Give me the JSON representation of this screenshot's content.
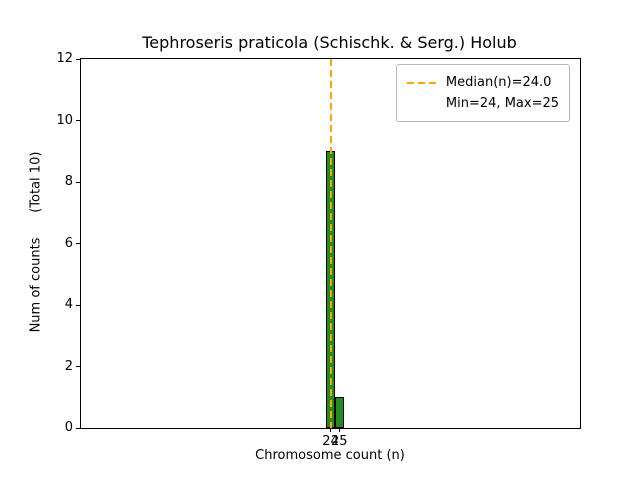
{
  "chart_data": {
    "type": "bar",
    "title": "Tephroseris praticola (Schischk. & Serg.) Holub",
    "xlabel": "Chromosome count (n)",
    "ylabel": "Num of counts      (Total 10)",
    "total_counts": 10,
    "bins": [
      {
        "x": 24,
        "count": 9
      },
      {
        "x": 25,
        "count": 1
      }
    ],
    "bin_width": 1,
    "median": 24.0,
    "min": 24,
    "max": 25,
    "xlim": [
      -4.3,
      52.3
    ],
    "ylim": [
      0,
      12
    ],
    "yticks": [
      0,
      2,
      4,
      6,
      8,
      10,
      12
    ],
    "xticks": [
      24,
      25
    ],
    "bar_color": "#228B22",
    "bar_edge_color": "#000000",
    "median_line_color": "#ffa500",
    "legend_position": "upper right",
    "grid": false,
    "legend": [
      "Median(n)=24.0",
      "Min=24, Max=25"
    ]
  }
}
